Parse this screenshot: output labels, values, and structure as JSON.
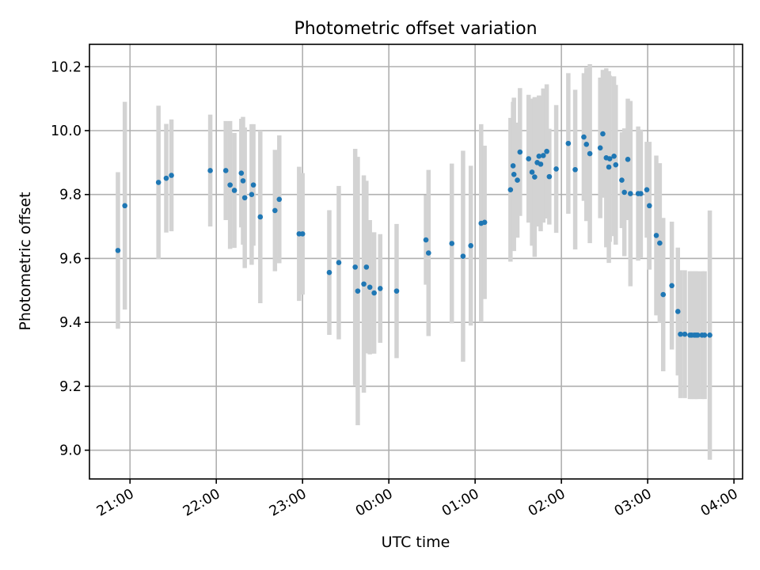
{
  "chart_data": {
    "type": "scatter",
    "title": "Photometric offset variation",
    "xlabel": "UTC time",
    "ylabel": "Photometric offset",
    "x_unit": "hour after 21:00",
    "xlim": [
      -0.47,
      7.1
    ],
    "ylim": [
      8.91,
      10.27
    ],
    "grid": true,
    "x_ticks": [
      {
        "value": 0,
        "label": "21:00"
      },
      {
        "value": 1,
        "label": "22:00"
      },
      {
        "value": 2,
        "label": "23:00"
      },
      {
        "value": 3,
        "label": "00:00"
      },
      {
        "value": 4,
        "label": "01:00"
      },
      {
        "value": 5,
        "label": "02:00"
      },
      {
        "value": 6,
        "label": "03:00"
      },
      {
        "value": 7,
        "label": "04:00"
      }
    ],
    "y_ticks": [
      {
        "value": 9.0,
        "label": "9.0"
      },
      {
        "value": 9.2,
        "label": "9.2"
      },
      {
        "value": 9.4,
        "label": "9.4"
      },
      {
        "value": 9.6,
        "label": "9.6"
      },
      {
        "value": 9.8,
        "label": "9.8"
      },
      {
        "value": 10.0,
        "label": "10.0"
      },
      {
        "value": 10.2,
        "label": "10.2"
      }
    ],
    "colors": {
      "point": "#1f77b4",
      "errorbar": "#d3d3d3"
    },
    "series": [
      {
        "x": [
          -0.14,
          -0.06,
          0.33,
          0.42,
          0.48,
          0.93,
          1.11,
          1.16,
          1.21,
          1.29,
          1.31,
          1.33,
          1.41,
          1.43,
          1.51,
          1.68,
          1.73,
          1.96,
          2.0,
          2.31,
          2.42,
          2.61,
          2.64,
          2.71,
          2.74,
          2.78,
          2.83,
          2.9,
          3.09,
          3.43,
          3.46,
          3.73,
          3.86,
          3.95,
          4.07,
          4.11,
          4.41,
          4.44,
          4.45,
          4.49,
          4.52,
          4.62,
          4.66,
          4.69,
          4.72,
          4.74,
          4.76,
          4.79,
          4.83,
          4.86,
          4.94,
          5.08,
          5.16,
          5.26,
          5.29,
          5.33,
          5.45,
          5.48,
          5.52,
          5.55,
          5.56,
          5.61,
          5.63,
          5.7,
          5.73,
          5.77,
          5.8,
          5.89,
          5.92,
          5.99,
          6.02,
          6.1,
          6.14,
          6.18,
          6.28,
          6.35,
          6.38,
          6.43,
          6.49,
          6.51,
          6.54,
          6.56,
          6.58,
          6.63,
          6.66,
          6.72
        ],
        "y": [
          9.625,
          9.765,
          9.838,
          9.851,
          9.86,
          9.875,
          9.875,
          9.83,
          9.813,
          9.867,
          9.843,
          9.79,
          9.8,
          9.83,
          9.73,
          9.75,
          9.785,
          9.677,
          9.677,
          9.556,
          9.587,
          9.573,
          9.498,
          9.52,
          9.573,
          9.51,
          9.492,
          9.506,
          9.498,
          9.658,
          9.617,
          9.647,
          9.607,
          9.64,
          9.71,
          9.713,
          9.815,
          9.89,
          9.863,
          9.845,
          9.933,
          9.912,
          9.87,
          9.855,
          9.9,
          9.92,
          9.895,
          9.922,
          9.935,
          9.856,
          9.88,
          9.96,
          9.878,
          9.98,
          9.957,
          9.928,
          9.946,
          9.99,
          9.915,
          9.886,
          9.912,
          9.92,
          9.893,
          9.845,
          9.807,
          9.91,
          9.803,
          9.803,
          9.803,
          9.815,
          9.765,
          9.672,
          9.648,
          9.487,
          9.515,
          9.434,
          9.363,
          9.363,
          9.36,
          9.36,
          9.36,
          9.36,
          9.36,
          9.36,
          9.36,
          9.36
        ],
        "yerr": [
          0.245,
          0.325,
          0.24,
          0.17,
          0.175,
          0.175,
          0.155,
          0.2,
          0.18,
          0.17,
          0.2,
          0.22,
          0.22,
          0.19,
          0.27,
          0.19,
          0.2,
          0.21,
          0.19,
          0.195,
          0.24,
          0.37,
          0.42,
          0.34,
          0.27,
          0.21,
          0.19,
          0.17,
          0.21,
          0.14,
          0.26,
          0.25,
          0.33,
          0.25,
          0.31,
          0.24,
          0.225,
          0.2,
          0.24,
          0.18,
          0.2,
          0.2,
          0.23,
          0.25,
          0.2,
          0.19,
          0.21,
          0.21,
          0.21,
          0.15,
          0.2,
          0.22,
          0.25,
          0.2,
          0.24,
          0.28,
          0.22,
          0.2,
          0.28,
          0.3,
          0.26,
          0.25,
          0.25,
          0.15,
          0.2,
          0.19,
          0.29,
          0.21,
          0.2,
          0.15,
          0.2,
          0.25,
          0.25,
          0.24,
          0.2,
          0.2,
          0.2,
          0.2,
          0.2,
          0.2,
          0.2,
          0.2,
          0.2,
          0.2,
          0.2,
          0.39
        ]
      }
    ]
  }
}
